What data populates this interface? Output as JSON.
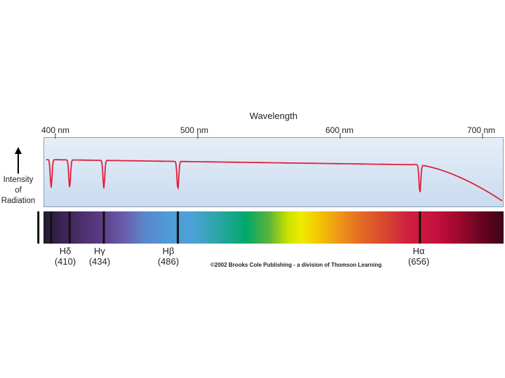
{
  "axis_title": "Wavelength",
  "ticks": [
    {
      "label": "400 nm",
      "nm": 400
    },
    {
      "label": "500 nm",
      "nm": 500
    },
    {
      "label": "600 nm",
      "nm": 600
    },
    {
      "label": "700 nm",
      "nm": 700
    }
  ],
  "ylabel": {
    "line1": "Intensity",
    "line2": "of",
    "line3": "Radiation"
  },
  "absorption_lines": [
    {
      "symbol": "Hδ",
      "wavelength": "(410)",
      "nm": 410,
      "labeled": true
    },
    {
      "symbol": "Hγ",
      "wavelength": "(434)",
      "nm": 434,
      "labeled": true
    },
    {
      "symbol": "Hβ",
      "wavelength": "(486)",
      "nm": 486,
      "labeled": true
    },
    {
      "symbol": "Hα",
      "wavelength": "(656)",
      "nm": 656,
      "labeled": true
    }
  ],
  "unlabeled_lines_nm": [
    397,
    388
  ],
  "copyright": "©2002 Brooks Cole Publishing - a division of Thomson Learning",
  "colors": {
    "curve": "#e0203a",
    "panel": "#dbe6f3",
    "tick": "#333333"
  }
}
